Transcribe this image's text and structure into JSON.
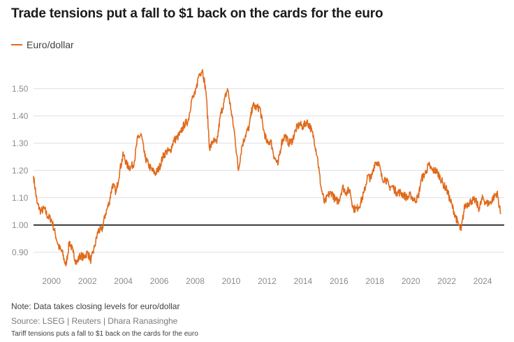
{
  "colors": {
    "series": "#e06a1b",
    "grid": "#dddddd",
    "baseline": "#333333",
    "tick_text": "#8c8c8c"
  },
  "chart_data": {
    "type": "line",
    "title": "Trade tensions put a fall to $1 back on the cards for the euro",
    "xlabel": "",
    "ylabel": "",
    "legend": "top-left",
    "grid": true,
    "xlim": [
      1999.0,
      2025.2
    ],
    "ylim": [
      0.82,
      1.62
    ],
    "x_ticks": [
      2000,
      2002,
      2004,
      2006,
      2008,
      2010,
      2012,
      2014,
      2016,
      2018,
      2020,
      2022,
      2024
    ],
    "x_tick_labels": [
      "2000",
      "2002",
      "2004",
      "2006",
      "2008",
      "2010",
      "2012",
      "2014",
      "2016",
      "2018",
      "2020",
      "2022",
      "2024"
    ],
    "y_ticks": [
      0.9,
      1.0,
      1.1,
      1.2,
      1.3,
      1.4,
      1.5
    ],
    "y_tick_labels": [
      "0.90",
      "1.00",
      "1.10",
      "1.20",
      "1.30",
      "1.40",
      "1.50"
    ],
    "reference_line": 1.0,
    "series": [
      {
        "name": "Euro/dollar",
        "x": [
          1999.0,
          1999.2,
          1999.4,
          1999.6,
          1999.8,
          2000.0,
          2000.2,
          2000.4,
          2000.6,
          2000.8,
          2001.0,
          2001.2,
          2001.4,
          2001.6,
          2001.8,
          2002.0,
          2002.2,
          2002.4,
          2002.6,
          2002.8,
          2003.0,
          2003.2,
          2003.4,
          2003.6,
          2003.8,
          2004.0,
          2004.2,
          2004.4,
          2004.6,
          2004.8,
          2005.0,
          2005.2,
          2005.4,
          2005.6,
          2005.8,
          2006.0,
          2006.2,
          2006.4,
          2006.6,
          2006.8,
          2007.0,
          2007.2,
          2007.4,
          2007.6,
          2007.8,
          2008.0,
          2008.2,
          2008.4,
          2008.6,
          2008.8,
          2009.0,
          2009.2,
          2009.4,
          2009.6,
          2009.8,
          2010.0,
          2010.2,
          2010.4,
          2010.6,
          2010.8,
          2011.0,
          2011.2,
          2011.4,
          2011.6,
          2011.8,
          2012.0,
          2012.2,
          2012.4,
          2012.6,
          2012.8,
          2013.0,
          2013.2,
          2013.4,
          2013.6,
          2013.8,
          2014.0,
          2014.2,
          2014.4,
          2014.6,
          2014.8,
          2015.0,
          2015.2,
          2015.4,
          2015.6,
          2015.8,
          2016.0,
          2016.2,
          2016.4,
          2016.6,
          2016.8,
          2017.0,
          2017.2,
          2017.4,
          2017.6,
          2017.8,
          2018.0,
          2018.2,
          2018.4,
          2018.6,
          2018.8,
          2019.0,
          2019.2,
          2019.4,
          2019.6,
          2019.8,
          2020.0,
          2020.2,
          2020.4,
          2020.6,
          2020.8,
          2021.0,
          2021.2,
          2021.4,
          2021.6,
          2021.8,
          2022.0,
          2022.2,
          2022.4,
          2022.6,
          2022.8,
          2023.0,
          2023.2,
          2023.4,
          2023.6,
          2023.8,
          2024.0,
          2024.2,
          2024.4,
          2024.6,
          2024.8,
          2025.0
        ],
        "y": [
          1.18,
          1.08,
          1.05,
          1.06,
          1.03,
          1.02,
          0.97,
          0.92,
          0.9,
          0.85,
          0.94,
          0.9,
          0.86,
          0.89,
          0.88,
          0.9,
          0.87,
          0.92,
          0.98,
          0.98,
          1.04,
          1.08,
          1.15,
          1.12,
          1.2,
          1.26,
          1.22,
          1.21,
          1.23,
          1.32,
          1.33,
          1.25,
          1.22,
          1.2,
          1.19,
          1.21,
          1.25,
          1.27,
          1.27,
          1.31,
          1.32,
          1.34,
          1.37,
          1.38,
          1.46,
          1.48,
          1.55,
          1.57,
          1.49,
          1.28,
          1.31,
          1.3,
          1.4,
          1.45,
          1.5,
          1.42,
          1.33,
          1.2,
          1.29,
          1.33,
          1.36,
          1.44,
          1.43,
          1.43,
          1.35,
          1.3,
          1.31,
          1.25,
          1.22,
          1.3,
          1.33,
          1.3,
          1.31,
          1.35,
          1.37,
          1.36,
          1.38,
          1.36,
          1.32,
          1.25,
          1.14,
          1.08,
          1.11,
          1.12,
          1.09,
          1.09,
          1.14,
          1.12,
          1.13,
          1.06,
          1.06,
          1.08,
          1.12,
          1.18,
          1.17,
          1.23,
          1.23,
          1.17,
          1.17,
          1.14,
          1.14,
          1.12,
          1.12,
          1.11,
          1.1,
          1.11,
          1.09,
          1.1,
          1.17,
          1.19,
          1.22,
          1.2,
          1.2,
          1.18,
          1.15,
          1.13,
          1.09,
          1.05,
          1.01,
          0.98,
          1.07,
          1.08,
          1.09,
          1.09,
          1.06,
          1.1,
          1.08,
          1.08,
          1.1,
          1.12,
          1.04
        ]
      }
    ]
  },
  "legend_label": "Euro/dollar",
  "note": "Note: Data takes closing levels for euro/dollar",
  "source": "Source: LSEG | Reuters | Dhara Ranasinghe",
  "caption": "Tariff tensions puts a fall to $1 back on the cards for the euro"
}
